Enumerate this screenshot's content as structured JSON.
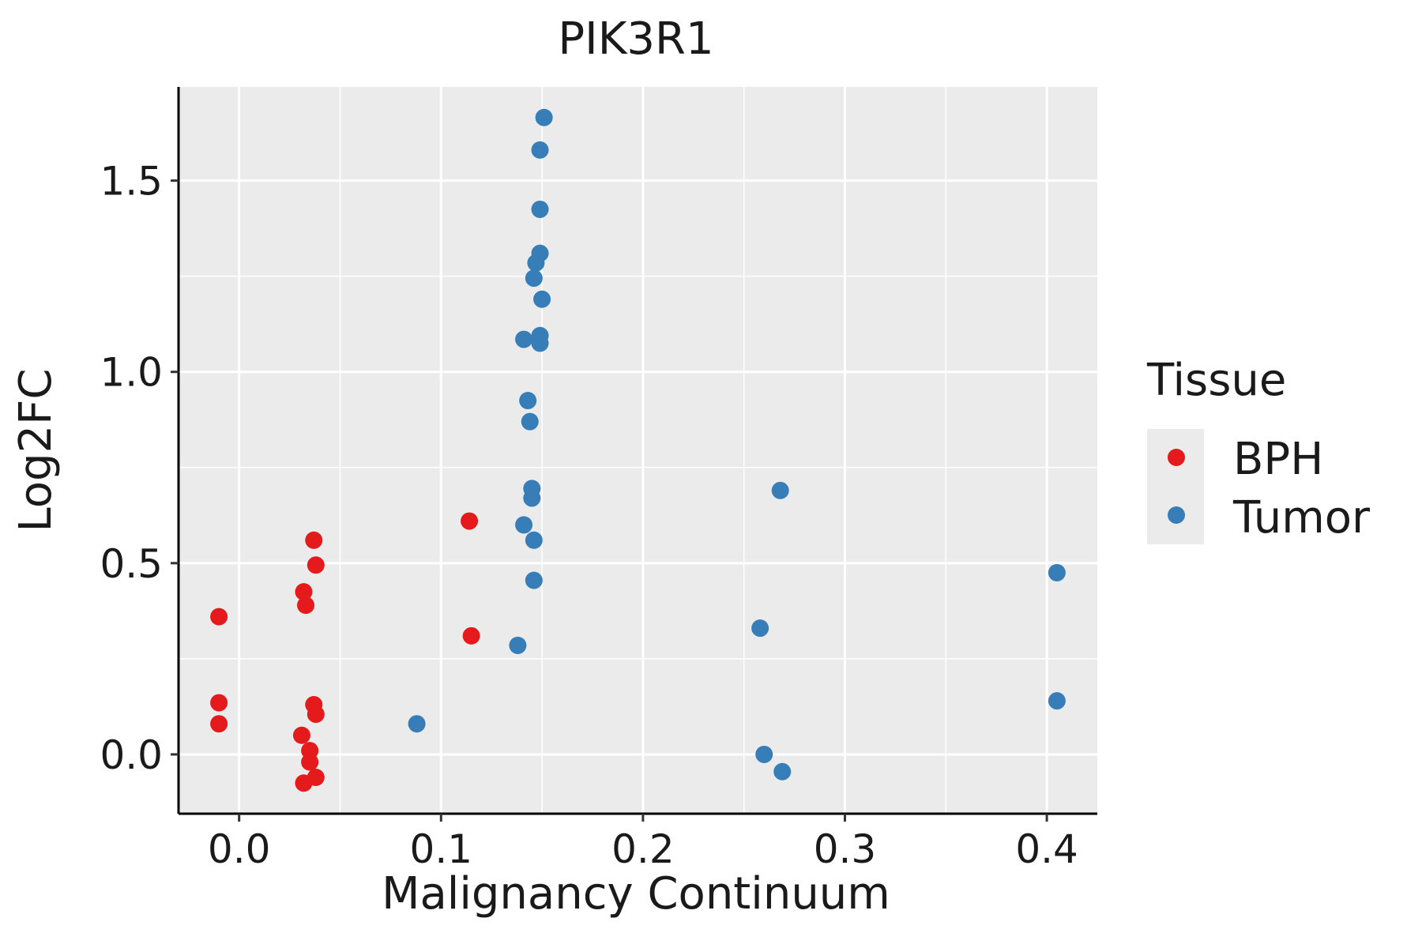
{
  "chart_data": {
    "type": "scatter",
    "title": "PIK3R1",
    "xlabel": "Malignancy Continuum",
    "ylabel": "Log2FC",
    "xlim": [
      -0.03,
      0.425
    ],
    "ylim": [
      -0.155,
      1.745
    ],
    "xticks": [
      0.0,
      0.1,
      0.2,
      0.3,
      0.4
    ],
    "xtick_labels": [
      "0.0",
      "0.1",
      "0.2",
      "0.3",
      "0.4"
    ],
    "yticks": [
      0.0,
      0.5,
      1.0,
      1.5
    ],
    "ytick_labels": [
      "0.0",
      "0.5",
      "1.0",
      "1.5"
    ],
    "grid": true,
    "legend": {
      "title": "Tissue",
      "placement": "right"
    },
    "series": [
      {
        "name": "BPH",
        "color": "#e41a1c",
        "points": [
          [
            -0.01,
            0.36
          ],
          [
            -0.01,
            0.135
          ],
          [
            -0.01,
            0.08
          ],
          [
            0.031,
            0.05
          ],
          [
            0.032,
            0.425
          ],
          [
            0.033,
            0.39
          ],
          [
            0.037,
            0.56
          ],
          [
            0.038,
            0.495
          ],
          [
            0.037,
            0.13
          ],
          [
            0.038,
            0.105
          ],
          [
            0.035,
            0.01
          ],
          [
            0.035,
            -0.02
          ],
          [
            0.032,
            -0.075
          ],
          [
            0.038,
            -0.06
          ],
          [
            0.114,
            0.61
          ],
          [
            0.115,
            0.31
          ]
        ]
      },
      {
        "name": "Tumor",
        "color": "#377eb8",
        "points": [
          [
            0.088,
            0.08
          ],
          [
            0.138,
            0.285
          ],
          [
            0.141,
            0.6
          ],
          [
            0.146,
            0.56
          ],
          [
            0.146,
            0.455
          ],
          [
            0.145,
            0.695
          ],
          [
            0.145,
            0.67
          ],
          [
            0.143,
            0.925
          ],
          [
            0.144,
            0.87
          ],
          [
            0.141,
            1.085
          ],
          [
            0.149,
            1.095
          ],
          [
            0.149,
            1.075
          ],
          [
            0.15,
            1.19
          ],
          [
            0.146,
            1.245
          ],
          [
            0.147,
            1.285
          ],
          [
            0.149,
            1.31
          ],
          [
            0.149,
            1.425
          ],
          [
            0.149,
            1.58
          ],
          [
            0.151,
            1.665
          ],
          [
            0.258,
            0.33
          ],
          [
            0.26,
            0.0
          ],
          [
            0.269,
            -0.045
          ],
          [
            0.268,
            0.69
          ],
          [
            0.405,
            0.475
          ],
          [
            0.405,
            0.14
          ]
        ]
      }
    ]
  }
}
